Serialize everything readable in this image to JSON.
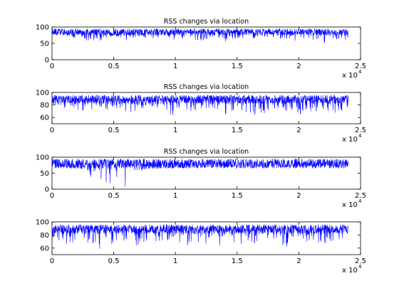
{
  "figure": {
    "background": "#ffffff",
    "line_color": "#0000ff"
  },
  "chart_data": [
    {
      "type": "line",
      "title": "RSS changes via location",
      "xlabel": "",
      "ylabel": "",
      "xlim": [
        0,
        25000
      ],
      "ylim": [
        0,
        100
      ],
      "xticks": [
        0,
        0.5,
        1,
        1.5,
        2,
        2.5
      ],
      "xtick_labels": [
        "0",
        "0.5",
        "1",
        "1.5",
        "2",
        "2.5"
      ],
      "yticks": [
        0,
        50,
        100
      ],
      "ytick_labels": [
        "0",
        "50",
        "100"
      ],
      "x_exponent_label": "x 10",
      "x_exponent": "4",
      "grid": false,
      "series": [
        {
          "color": "#0000ff",
          "x_range": [
            0,
            24000
          ],
          "typical_range": [
            75,
            95
          ],
          "occasional_min": 45,
          "points": [
            [
              0,
              82
            ],
            [
              1000,
              76
            ],
            [
              2000,
              60
            ],
            [
              3000,
              55
            ],
            [
              4000,
              58
            ],
            [
              5000,
              74
            ],
            [
              6000,
              60
            ],
            [
              7000,
              72
            ],
            [
              8000,
              62
            ],
            [
              9000,
              70
            ],
            [
              10000,
              58
            ],
            [
              11000,
              64
            ],
            [
              12000,
              56
            ],
            [
              13000,
              68
            ],
            [
              14000,
              52
            ],
            [
              15000,
              66
            ],
            [
              16000,
              58
            ],
            [
              17000,
              72
            ],
            [
              18000,
              60
            ],
            [
              19000,
              64
            ],
            [
              20000,
              54
            ],
            [
              21000,
              62
            ],
            [
              22000,
              48
            ],
            [
              23000,
              56
            ],
            [
              24000,
              60
            ]
          ]
        }
      ]
    },
    {
      "type": "line",
      "title": "RSS changes via location",
      "xlabel": "",
      "ylabel": "",
      "xlim": [
        0,
        25000
      ],
      "ylim": [
        50,
        100
      ],
      "xticks": [
        0,
        0.5,
        1,
        1.5,
        2,
        2.5
      ],
      "xtick_labels": [
        "0",
        "0.5",
        "1",
        "1.5",
        "2",
        "2.5"
      ],
      "yticks": [
        60,
        80,
        100
      ],
      "ytick_labels": [
        "60",
        "80",
        "100"
      ],
      "x_exponent_label": "x 10",
      "x_exponent": "4",
      "grid": false,
      "series": [
        {
          "color": "#0000ff",
          "x_range": [
            0,
            24000
          ],
          "typical_range": [
            82,
            96
          ],
          "occasional_min": 58,
          "points": [
            [
              0,
              80
            ],
            [
              1000,
              74
            ],
            [
              2000,
              70
            ],
            [
              3000,
              72
            ],
            [
              4000,
              76
            ],
            [
              5000,
              68
            ],
            [
              6000,
              60
            ],
            [
              7000,
              72
            ],
            [
              8000,
              78
            ],
            [
              9000,
              66
            ],
            [
              10000,
              62
            ],
            [
              11000,
              70
            ],
            [
              12000,
              68
            ],
            [
              13000,
              74
            ],
            [
              14000,
              64
            ],
            [
              15000,
              72
            ],
            [
              16000,
              66
            ],
            [
              17000,
              62
            ],
            [
              18000,
              74
            ],
            [
              19000,
              70
            ],
            [
              20000,
              64
            ],
            [
              21000,
              68
            ],
            [
              22000,
              72
            ],
            [
              23000,
              66
            ],
            [
              24000,
              70
            ]
          ]
        }
      ]
    },
    {
      "type": "line",
      "title": "RSS changes via location",
      "xlabel": "",
      "ylabel": "",
      "xlim": [
        0,
        25000
      ],
      "ylim": [
        0,
        100
      ],
      "xticks": [
        0,
        0.5,
        1,
        1.5,
        2,
        2.5
      ],
      "xtick_labels": [
        "0",
        "0.5",
        "1",
        "1.5",
        "2",
        "2.5"
      ],
      "yticks": [
        0,
        50,
        100
      ],
      "ytick_labels": [
        "0",
        "50",
        "100"
      ],
      "x_exponent_label": "x 10",
      "x_exponent": "4",
      "grid": false,
      "series": [
        {
          "color": "#0000ff",
          "x_range": [
            0,
            24000
          ],
          "typical_range": [
            65,
            95
          ],
          "occasional_min": 2,
          "points": [
            [
              0,
              80
            ],
            [
              1000,
              72
            ],
            [
              2000,
              70
            ],
            [
              3000,
              52
            ],
            [
              3500,
              10
            ],
            [
              4000,
              22
            ],
            [
              4500,
              4
            ],
            [
              5000,
              38
            ],
            [
              5500,
              32
            ],
            [
              6000,
              4
            ],
            [
              6500,
              45
            ],
            [
              7000,
              58
            ],
            [
              8000,
              64
            ],
            [
              9000,
              66
            ],
            [
              10000,
              70
            ],
            [
              11000,
              68
            ],
            [
              12000,
              72
            ],
            [
              13000,
              70
            ],
            [
              14000,
              74
            ],
            [
              15000,
              72
            ],
            [
              16000,
              74
            ],
            [
              17000,
              70
            ],
            [
              18000,
              76
            ],
            [
              19000,
              74
            ],
            [
              20000,
              72
            ],
            [
              21000,
              76
            ],
            [
              22000,
              74
            ],
            [
              23000,
              72
            ],
            [
              24000,
              76
            ]
          ]
        }
      ]
    },
    {
      "type": "line",
      "title": "",
      "xlabel": "",
      "ylabel": "",
      "xlim": [
        0,
        25000
      ],
      "ylim": [
        50,
        100
      ],
      "xticks": [
        0,
        0.5,
        1,
        1.5,
        2,
        2.5
      ],
      "xtick_labels": [
        "0",
        "0.5",
        "1",
        "1.5",
        "2",
        "2.5"
      ],
      "yticks": [
        60,
        80,
        100
      ],
      "ytick_labels": [
        "60",
        "80",
        "100"
      ],
      "x_exponent_label": "x 10",
      "x_exponent": "4",
      "grid": false,
      "series": [
        {
          "color": "#0000ff",
          "x_range": [
            0,
            24000
          ],
          "typical_range": [
            82,
            96
          ],
          "occasional_min": 55,
          "points": [
            [
              0,
              76
            ],
            [
              1000,
              64
            ],
            [
              2000,
              70
            ],
            [
              3000,
              62
            ],
            [
              4000,
              58
            ],
            [
              5000,
              68
            ],
            [
              6000,
              72
            ],
            [
              7000,
              60
            ],
            [
              8000,
              66
            ],
            [
              9000,
              62
            ],
            [
              10000,
              70
            ],
            [
              11000,
              64
            ],
            [
              12000,
              68
            ],
            [
              13000,
              66
            ],
            [
              14000,
              62
            ],
            [
              15000,
              70
            ],
            [
              16000,
              58
            ],
            [
              17000,
              72
            ],
            [
              18000,
              66
            ],
            [
              19000,
              60
            ],
            [
              20000,
              64
            ],
            [
              21000,
              68
            ],
            [
              22000,
              62
            ],
            [
              23000,
              70
            ],
            [
              24000,
              66
            ]
          ]
        }
      ]
    }
  ]
}
